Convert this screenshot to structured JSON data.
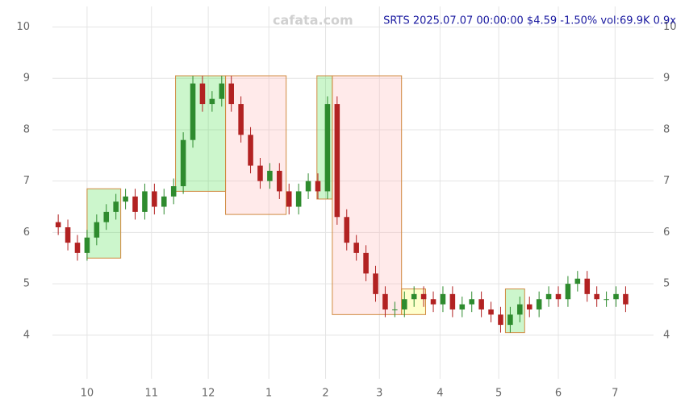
{
  "chart_data": {
    "type": "candlestick",
    "title": "SRTS 2025.07.07 00:00:00 $4.59 -1.50% vol:69.9K 0.9x",
    "watermark": "cafata.com",
    "x": [
      0,
      1,
      2,
      3,
      4,
      5,
      6,
      7,
      8,
      9,
      10,
      11,
      12,
      13,
      14,
      15,
      16,
      17,
      18,
      19,
      20,
      21,
      22,
      23,
      24,
      25,
      26,
      27,
      28,
      29,
      30,
      31,
      32,
      33,
      34,
      35,
      36,
      37,
      38,
      39,
      40,
      41,
      42,
      43,
      44,
      45,
      46,
      47,
      48,
      49,
      50,
      51,
      52,
      53,
      54,
      55,
      56,
      57,
      58,
      59
    ],
    "open": [
      6.2,
      6.1,
      5.8,
      5.6,
      5.9,
      6.2,
      6.4,
      6.6,
      6.7,
      6.4,
      6.8,
      6.5,
      6.7,
      6.9,
      7.8,
      8.9,
      8.5,
      8.6,
      8.9,
      8.5,
      7.9,
      7.3,
      7.0,
      7.2,
      6.8,
      6.5,
      6.8,
      7.0,
      6.8,
      8.5,
      6.3,
      5.8,
      5.6,
      5.2,
      4.8,
      4.5,
      4.5,
      4.7,
      4.8,
      4.7,
      4.6,
      4.8,
      4.5,
      4.6,
      4.7,
      4.5,
      4.4,
      4.2,
      4.4,
      4.6,
      4.5,
      4.7,
      4.8,
      4.7,
      5.0,
      5.1,
      4.8,
      4.7,
      4.7,
      4.8
    ],
    "high": [
      6.35,
      6.25,
      5.95,
      6.05,
      6.35,
      6.55,
      6.75,
      6.85,
      6.85,
      6.95,
      6.95,
      6.85,
      7.05,
      7.95,
      9.05,
      9.05,
      8.75,
      9.05,
      9.05,
      8.65,
      8.05,
      7.45,
      7.35,
      7.35,
      6.95,
      6.95,
      7.15,
      7.15,
      8.65,
      8.65,
      6.45,
      5.95,
      5.75,
      5.35,
      4.95,
      4.65,
      4.85,
      4.95,
      4.95,
      4.85,
      4.95,
      4.95,
      4.75,
      4.85,
      4.85,
      4.65,
      4.55,
      4.55,
      4.75,
      4.75,
      4.85,
      4.95,
      4.95,
      5.15,
      5.25,
      5.25,
      4.95,
      4.85,
      4.95,
      4.95
    ],
    "low": [
      5.95,
      5.65,
      5.45,
      5.45,
      5.75,
      6.05,
      6.25,
      6.45,
      6.25,
      6.25,
      6.35,
      6.35,
      6.55,
      6.75,
      7.65,
      8.35,
      8.35,
      8.45,
      8.35,
      7.75,
      7.15,
      6.85,
      6.85,
      6.65,
      6.35,
      6.35,
      6.65,
      6.65,
      6.65,
      6.15,
      5.65,
      5.45,
      5.05,
      4.65,
      4.35,
      4.35,
      4.35,
      4.55,
      4.55,
      4.45,
      4.45,
      4.35,
      4.35,
      4.45,
      4.35,
      4.25,
      4.05,
      4.05,
      4.25,
      4.35,
      4.35,
      4.55,
      4.55,
      4.55,
      4.85,
      4.65,
      4.55,
      4.55,
      4.55,
      4.45
    ],
    "close": [
      6.1,
      5.8,
      5.6,
      5.9,
      6.2,
      6.4,
      6.6,
      6.7,
      6.4,
      6.8,
      6.5,
      6.7,
      6.9,
      7.8,
      8.9,
      8.5,
      8.6,
      8.9,
      8.5,
      7.9,
      7.3,
      7.0,
      7.2,
      6.8,
      6.5,
      6.8,
      7.0,
      6.8,
      8.5,
      6.3,
      5.8,
      5.6,
      5.2,
      4.8,
      4.5,
      4.5,
      4.7,
      4.8,
      4.7,
      4.6,
      4.8,
      4.5,
      4.6,
      4.7,
      4.5,
      4.4,
      4.2,
      4.4,
      4.6,
      4.5,
      4.7,
      4.8,
      4.7,
      5.0,
      5.1,
      4.8,
      4.7,
      4.7,
      4.8,
      4.6
    ],
    "up_color": "#2e8b2e",
    "down_color": "#b22222",
    "zones": [
      {
        "x": [
          3.0,
          6.5
        ],
        "y": [
          5.5,
          6.85
        ],
        "color": "#33dd33"
      },
      {
        "x": [
          12.2,
          17.4
        ],
        "y": [
          6.8,
          9.05
        ],
        "color": "#33dd33"
      },
      {
        "x": [
          17.4,
          23.7
        ],
        "y": [
          6.35,
          9.05
        ],
        "color": "#ffaaaa"
      },
      {
        "x": [
          26.9,
          28.5
        ],
        "y": [
          6.65,
          9.05
        ],
        "color": "#33dd33"
      },
      {
        "x": [
          28.5,
          35.7
        ],
        "y": [
          4.4,
          9.05
        ],
        "color": "#ffaaaa"
      },
      {
        "x": [
          35.7,
          38.2
        ],
        "y": [
          4.4,
          4.9
        ],
        "color": "#ffff33"
      },
      {
        "x": [
          46.5,
          48.5
        ],
        "y": [
          4.05,
          4.9
        ],
        "color": "#33dd33"
      }
    ],
    "xlim": [
      -0.6,
      61.9
    ],
    "xticks": [
      {
        "value": 3.0,
        "label": "10"
      },
      {
        "value": 9.7,
        "label": "11"
      },
      {
        "value": 15.6,
        "label": "12"
      },
      {
        "value": 21.9,
        "label": "1"
      },
      {
        "value": 27.8,
        "label": "2"
      },
      {
        "value": 33.4,
        "label": "3"
      },
      {
        "value": 39.7,
        "label": "4"
      },
      {
        "value": 45.8,
        "label": "5"
      },
      {
        "value": 52.0,
        "label": "6"
      },
      {
        "value": 57.9,
        "label": "7"
      }
    ],
    "ylim": [
      3.15,
      10.4
    ],
    "yticks": [
      4,
      5,
      6,
      7,
      8,
      9,
      10
    ],
    "grid": true
  }
}
